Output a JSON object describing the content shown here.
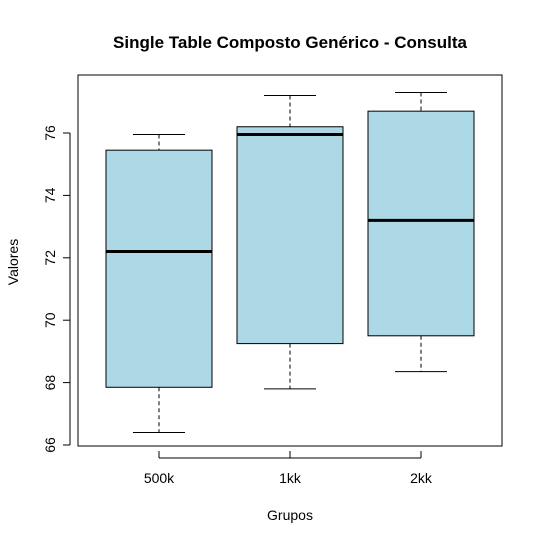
{
  "chart_data": {
    "type": "boxplot",
    "title": "Single Table Composto Genérico - Consulta",
    "xlabel": "Grupos",
    "ylabel": "Valores",
    "ylim": [
      66,
      77.4
    ],
    "yticks": [
      66,
      68,
      70,
      72,
      74,
      76
    ],
    "grid": false,
    "box_color": "#add8e6",
    "categories": [
      "500k",
      "1kk",
      "2kk"
    ],
    "boxes": [
      {
        "category": "500k",
        "whisker_low": 66.4,
        "q1": 67.85,
        "median": 72.2,
        "q3": 75.45,
        "whisker_high": 75.95
      },
      {
        "category": "1kk",
        "whisker_low": 67.8,
        "q1": 69.25,
        "median": 75.95,
        "q3": 76.2,
        "whisker_high": 77.2
      },
      {
        "category": "2kk",
        "whisker_low": 68.35,
        "q1": 69.5,
        "median": 73.2,
        "q3": 76.7,
        "whisker_high": 77.3
      }
    ]
  }
}
